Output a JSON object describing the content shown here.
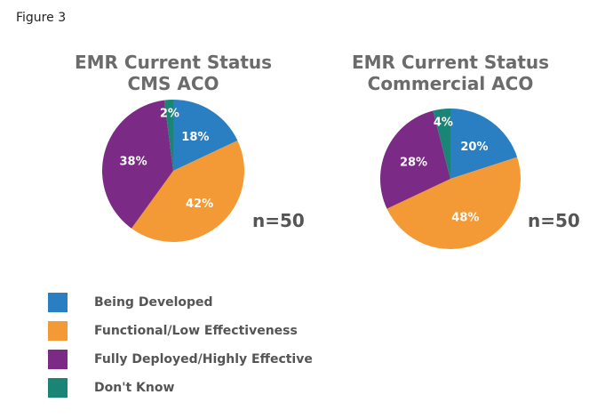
{
  "figure_label": "Figure 3",
  "chart_data": [
    {
      "type": "pie",
      "title_line1": "EMR Current Status",
      "title_line2": "CMS ACO",
      "note": "n=50",
      "slices": [
        {
          "category": "Being Developed",
          "value": 18,
          "label": "18%",
          "color": "#2a7fc2"
        },
        {
          "category": "Functional/Low Effectiveness",
          "value": 42,
          "label": "42%",
          "color": "#f39a36"
        },
        {
          "category": "Fully Deployed/Highly Effective",
          "value": 38,
          "label": "38%",
          "color": "#7b2a86"
        },
        {
          "category": "Don't Know",
          "value": 2,
          "label": "2%",
          "color": "#1a8577"
        }
      ]
    },
    {
      "type": "pie",
      "title_line1": "EMR Current Status",
      "title_line2": "Commercial ACO",
      "note": "n=50",
      "slices": [
        {
          "category": "Being Developed",
          "value": 20,
          "label": "20%",
          "color": "#2a7fc2"
        },
        {
          "category": "Functional/Low Effectiveness",
          "value": 48,
          "label": "48%",
          "color": "#f39a36"
        },
        {
          "category": "Fully Deployed/Highly Effective",
          "value": 28,
          "label": "28%",
          "color": "#7b2a86"
        },
        {
          "category": "Don't Know",
          "value": 4,
          "label": "4%",
          "color": "#1a8577"
        }
      ]
    }
  ],
  "legend": [
    {
      "label": "Being Developed",
      "color": "#2a7fc2"
    },
    {
      "label": "Functional/Low Effectiveness",
      "color": "#f39a36"
    },
    {
      "label": "Fully Deployed/Highly Effective",
      "color": "#7b2a86"
    },
    {
      "label": "Don't Know",
      "color": "#1a8577"
    }
  ]
}
